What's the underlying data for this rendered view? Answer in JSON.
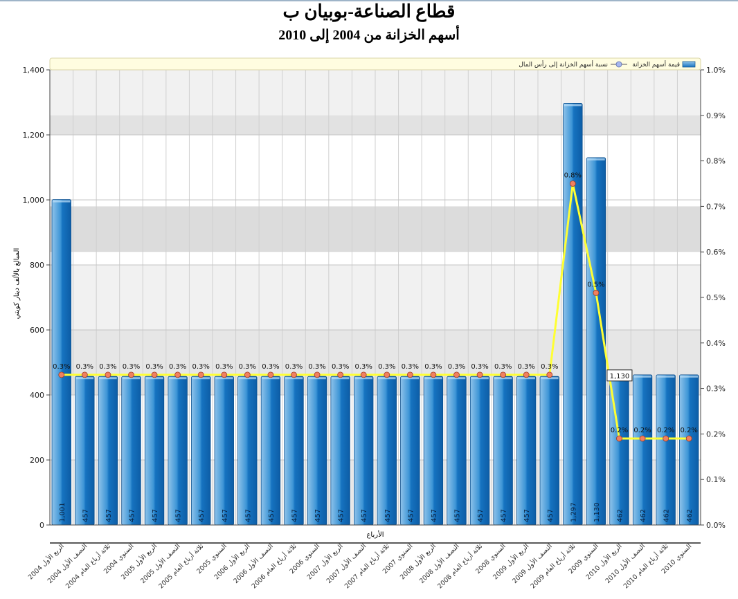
{
  "title": "قطاع الصناعة-بوبيان ب",
  "subtitle": "أسهم الخزانة من 2004 إلى 2010",
  "chart_data": {
    "type": "bar",
    "categories": [
      "الربع الأول 2004",
      "النصف الأول 2004",
      "ثلاثة أرباع العام 2004",
      "السنوي 2004",
      "الربع الأول 2005",
      "النصف الأول 2005",
      "ثلاثة أرباع العام 2005",
      "السنوي 2005",
      "الربع الأول 2006",
      "النصف الأول 2006",
      "ثلاثة أرباع العام 2006",
      "السنوي 2006",
      "الربع الأول 2007",
      "النصف الأول 2007",
      "ثلاثة أرباع العام 2007",
      "السنوي 2007",
      "الربع الأول 2008",
      "النصف الأول 2008",
      "ثلاثة أرباع العام 2008",
      "السنوي 2008",
      "الربع الأول 2009",
      "النصف الأول 2009",
      "ثلاثة أرباع العام 2009",
      "السنوي 2009",
      "الربع الأول 2010",
      "النصف الأول 2010",
      "ثلاثة أرباع العام 2010",
      "السنوي 2010"
    ],
    "series": [
      {
        "name": "قيمة أسهم الخزانة",
        "type": "bar",
        "axis": "left",
        "values": [
          1001,
          457,
          457,
          457,
          457,
          457,
          457,
          457,
          457,
          457,
          457,
          457,
          457,
          457,
          457,
          457,
          457,
          457,
          457,
          457,
          457,
          457,
          1297,
          1130,
          462,
          462,
          462,
          462
        ],
        "labels": [
          "1,001",
          "457",
          "457",
          "457",
          "457",
          "457",
          "457",
          "457",
          "457",
          "457",
          "457",
          "457",
          "457",
          "457",
          "457",
          "457",
          "457",
          "457",
          "457",
          "457",
          "457",
          "457",
          "1,297",
          "1,130",
          "462",
          "462",
          "462",
          "462"
        ]
      },
      {
        "name": "نسبة أسهم الخزانة إلى رأس المال",
        "type": "line",
        "axis": "right",
        "values": [
          0.33,
          0.33,
          0.33,
          0.33,
          0.33,
          0.33,
          0.33,
          0.33,
          0.33,
          0.33,
          0.33,
          0.33,
          0.33,
          0.33,
          0.33,
          0.33,
          0.33,
          0.33,
          0.33,
          0.33,
          0.33,
          0.33,
          0.75,
          0.51,
          0.19,
          0.19,
          0.19,
          0.19
        ],
        "labels": [
          "0.3%",
          "0.3%",
          "0.3%",
          "0.3%",
          "0.3%",
          "0.3%",
          "0.3%",
          "0.3%",
          "0.3%",
          "0.3%",
          "0.3%",
          "0.3%",
          "0.3%",
          "0.3%",
          "0.3%",
          "0.3%",
          "0.3%",
          "0.3%",
          "0.3%",
          "0.3%",
          "0.3%",
          "0.3%",
          "0.8%",
          "0.5%",
          "0.2%",
          "0.2%",
          "0.2%",
          "0.2%"
        ]
      }
    ],
    "ylabel": "المبالغ بالألف دينار كويتي",
    "xlabel": "الأرباع",
    "ylim": [
      0,
      1400
    ],
    "yticks": [
      "0",
      "200",
      "400",
      "600",
      "800",
      "1,000",
      "1,200",
      "1,400"
    ],
    "y2lim": [
      0,
      1.0
    ],
    "y2ticks": [
      "0.0%",
      "0.1%",
      "0.2%",
      "0.3%",
      "0.4%",
      "0.5%",
      "0.6%",
      "0.7%",
      "0.8%",
      "0.9%",
      "1.0%"
    ],
    "tooltip": "1,130",
    "legend_position": "top-right",
    "grid": true,
    "colors": {
      "bar": "#1f78c8",
      "line": "#ffff33",
      "marker": "#f08060",
      "legend_bg": "#fffde0"
    }
  }
}
